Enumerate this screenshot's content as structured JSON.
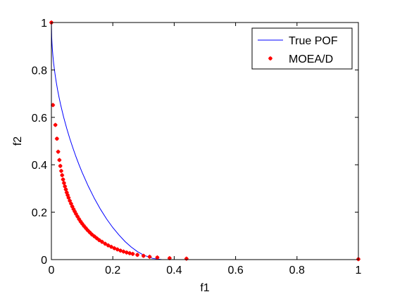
{
  "chart_data": {
    "type": "line",
    "xlabel": "f1",
    "ylabel": "f2",
    "xlim": [
      0,
      1
    ],
    "ylim": [
      0,
      1
    ],
    "xticks": [
      0,
      0.2,
      0.4,
      0.6,
      0.8,
      1
    ],
    "yticks": [
      0,
      0.2,
      0.4,
      0.6,
      0.8,
      1
    ],
    "xtick_labels": [
      "0",
      "0.2",
      "0.4",
      "0.6",
      "0.8",
      "1"
    ],
    "ytick_labels": [
      "0",
      "0.2",
      "0.4",
      "0.6",
      "0.8",
      "1"
    ],
    "grid": false,
    "legend_position": "top-right",
    "series": [
      {
        "name": "True POF",
        "style": "line",
        "color": "#0000ff",
        "x": [
          0,
          0.001,
          0.002,
          0.003,
          0.005,
          0.007,
          0.01,
          0.013,
          0.016,
          0.02,
          0.025,
          0.03,
          0.035,
          0.04,
          0.05,
          0.06,
          0.07,
          0.08,
          0.09,
          0.1,
          0.12,
          0.14,
          0.16,
          0.18,
          0.2,
          0.22,
          0.24,
          0.26,
          0.28,
          0.3,
          0.33,
          0.36,
          0.4,
          0.44,
          0.48,
          0.5
        ],
        "y": [
          1,
          0.937,
          0.911,
          0.89,
          0.858,
          0.832,
          0.8,
          0.772,
          0.747,
          0.717,
          0.684,
          0.654,
          0.627,
          0.6,
          0.553,
          0.51,
          0.471,
          0.434,
          0.4,
          0.368,
          0.31,
          0.258,
          0.212,
          0.171,
          0.135,
          0.104,
          0.076,
          0.053,
          0.034,
          0.019,
          0.005,
          0.0,
          0.0,
          0.0,
          0.0,
          0.0
        ]
      },
      {
        "name": "MOEA/D",
        "style": "markers",
        "color": "#ff0000",
        "x": [
          0,
          0.005,
          0.013,
          0.018,
          0.022,
          0.026,
          0.029,
          0.032,
          0.035,
          0.038,
          0.041,
          0.044,
          0.047,
          0.05,
          0.053,
          0.056,
          0.06,
          0.064,
          0.068,
          0.072,
          0.076,
          0.08,
          0.085,
          0.09,
          0.095,
          0.1,
          0.106,
          0.112,
          0.118,
          0.125,
          0.132,
          0.14,
          0.148,
          0.156,
          0.165,
          0.175,
          0.185,
          0.195,
          0.205,
          0.215,
          0.225,
          0.235,
          0.245,
          0.255,
          0.265,
          0.28,
          0.3,
          0.32,
          0.345,
          0.385,
          0.44,
          1
        ],
        "y": [
          1,
          0.652,
          0.568,
          0.51,
          0.455,
          0.42,
          0.395,
          0.374,
          0.356,
          0.338,
          0.323,
          0.309,
          0.296,
          0.283,
          0.272,
          0.261,
          0.248,
          0.236,
          0.224,
          0.213,
          0.203,
          0.193,
          0.182,
          0.171,
          0.161,
          0.152,
          0.142,
          0.133,
          0.124,
          0.115,
          0.106,
          0.098,
          0.09,
          0.082,
          0.075,
          0.067,
          0.06,
          0.054,
          0.048,
          0.043,
          0.038,
          0.034,
          0.03,
          0.027,
          0.024,
          0.02,
          0.016,
          0.012,
          0.009,
          0.006,
          0.004,
          0.002
        ]
      }
    ]
  }
}
